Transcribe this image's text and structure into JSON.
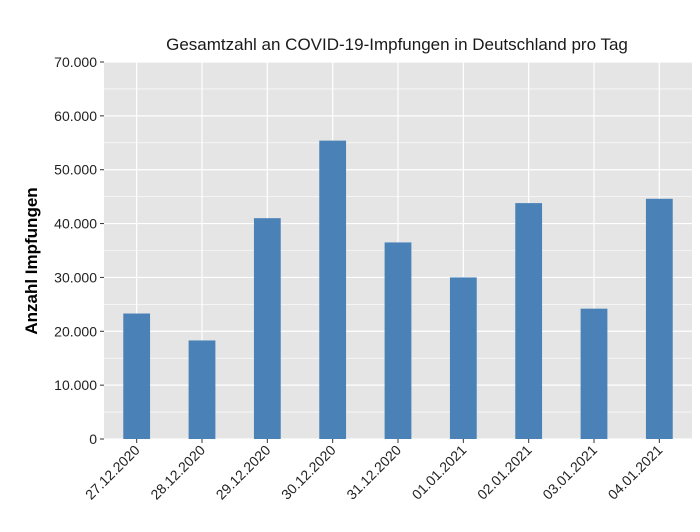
{
  "chart_data": {
    "type": "bar",
    "title": "Gesamtzahl an COVID-19-Impfungen in Deutschland pro Tag",
    "xlabel": "",
    "ylabel": "Anzahl Impfungen",
    "categories": [
      "27.12.2020",
      "28.12.2020",
      "29.12.2020",
      "30.12.2020",
      "31.12.2020",
      "01.01.2021",
      "02.01.2021",
      "03.01.2021",
      "04.01.2021"
    ],
    "values": [
      23300,
      18300,
      41000,
      55400,
      36500,
      30000,
      43800,
      24200,
      44600
    ],
    "ylim": [
      0,
      70000
    ],
    "yticks": [
      0,
      10000,
      20000,
      30000,
      40000,
      50000,
      60000,
      70000
    ],
    "ytick_labels": [
      "0",
      "10.000",
      "20.000",
      "30.000",
      "40.000",
      "50.000",
      "60.000",
      "70.000"
    ],
    "grid": true,
    "legend": "none",
    "colors": {
      "bar": "#4a82b8",
      "panel": "#e5e5e5",
      "grid": "#ffffff"
    }
  }
}
